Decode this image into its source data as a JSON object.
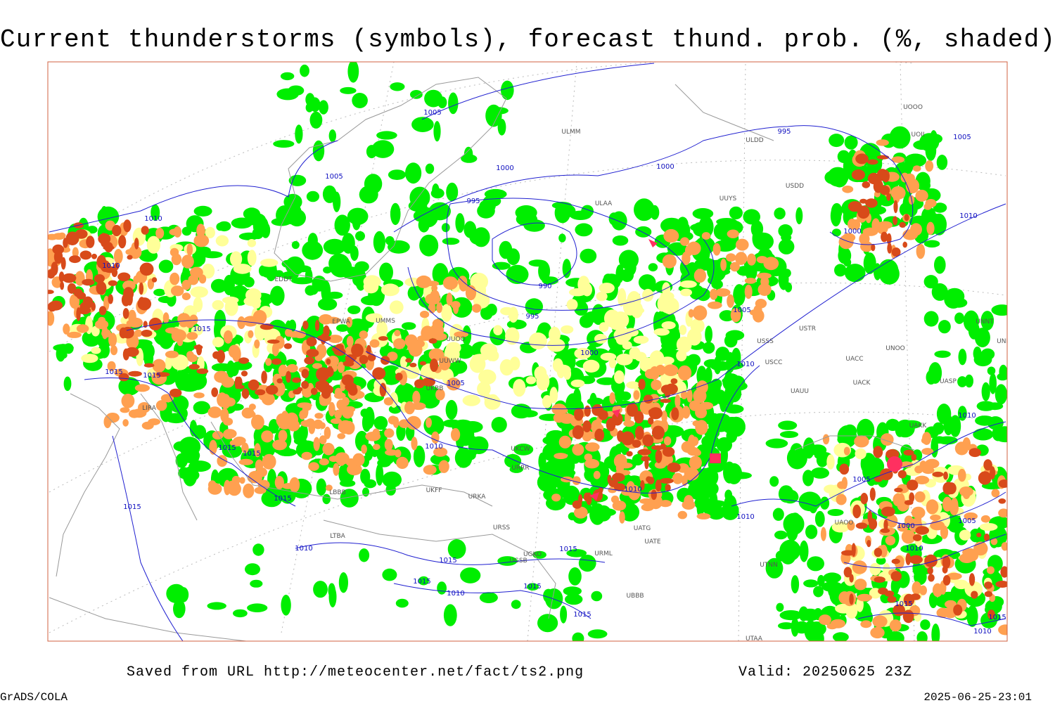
{
  "header": {
    "title": "Current thunderstorms (symbols), forecast thund. prob. (%, shaded)"
  },
  "map": {
    "isobar_labels": [
      "1005",
      "1005",
      "1000",
      "1000",
      "995",
      "1005",
      "995",
      "1010",
      "1010",
      "990",
      "995",
      "1015",
      "1005",
      "1000",
      "1010",
      "1005",
      "1015",
      "1015",
      "1010",
      "1000",
      "1010",
      "1015",
      "1015",
      "1015",
      "1010",
      "1005",
      "1010",
      "1000",
      "1005",
      "1010",
      "1015",
      "1010",
      "1015",
      "1015",
      "1010",
      "1015",
      "1015",
      "1015",
      "1010",
      "1015",
      "1015",
      "1010"
    ],
    "stations": [
      "ULMM",
      "ULDD",
      "UOII",
      "UOOO",
      "USDD",
      "UUYS",
      "ULAA",
      "EDDT",
      "EPWA",
      "UMMS",
      "UUOO",
      "USSS",
      "USTR",
      "UNOO",
      "USCC",
      "UACC",
      "UAUU",
      "UACK",
      "UASP",
      "UUWW",
      "UKBB",
      "UKCW",
      "URRR",
      "UKFF",
      "URKA",
      "URSS",
      "UGSB",
      "UGKO",
      "UBBB",
      "UATE",
      "UATG",
      "UTNN",
      "UTAA",
      "UAKK",
      "URML",
      "LIRA",
      "LBBB",
      "LTBA",
      "UNNT",
      "UNBB",
      "UAOO"
    ]
  },
  "footer": {
    "source": "Saved from URL http://meteocenter.net/fact/ts2.png",
    "valid": "Valid: 20250625 23Z",
    "credit": "GrADS/COLA",
    "timestamp": "2025-06-25-23:01"
  }
}
